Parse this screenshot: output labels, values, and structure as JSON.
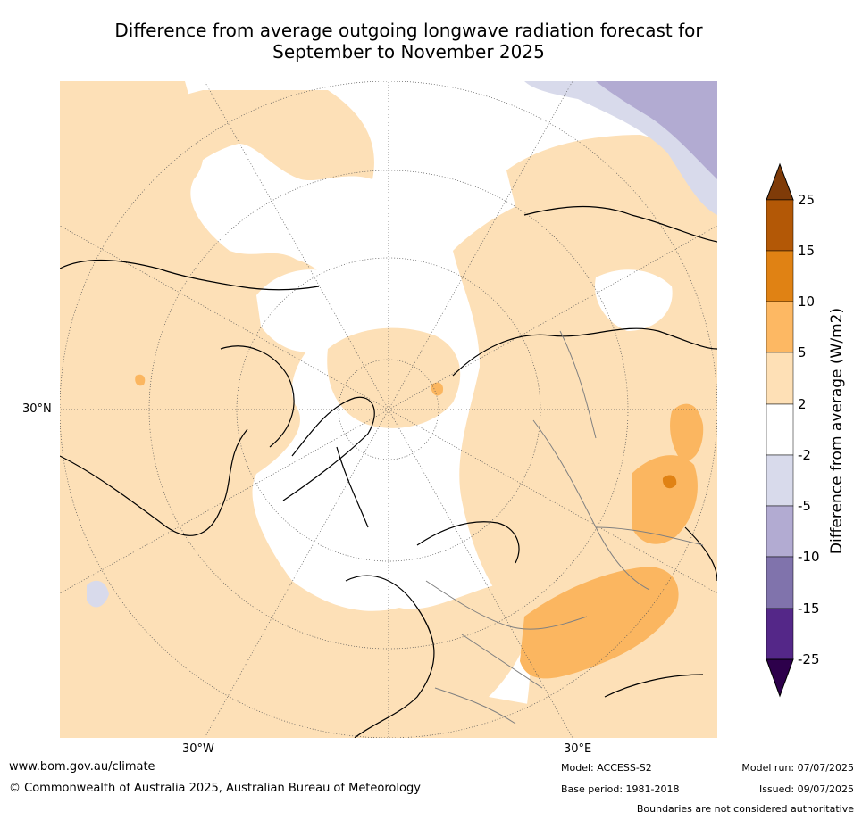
{
  "title": {
    "line1": "Difference from average outgoing longwave radiation forecast for",
    "line2": "September to November 2025"
  },
  "map": {
    "projection": "north-polar-stereographic",
    "lat_label": "30°N",
    "lon_labels": [
      "30°W",
      "30°E"
    ],
    "colors": {
      "ocean": "#ffffff",
      "p2_5": "#fde0b7",
      "p5_10": "#fbb660",
      "p10_15": "#e08214",
      "p15_25": "#b35806",
      "n2_5": "#d8daeb",
      "n5_10": "#b2abd2",
      "n10_15": "#8073ac",
      "n15_25": "#542788",
      "coast": "#000000",
      "borders": "#808080"
    }
  },
  "colorbar": {
    "label": "Difference from average (W/m2)",
    "ticks": [
      "25",
      "15",
      "10",
      "5",
      "2",
      "-2",
      "-5",
      "-10",
      "-15",
      "-25"
    ],
    "colors": [
      "#7f3b08",
      "#b35806",
      "#e08214",
      "#fdb863",
      "#fee0b6",
      "#ffffff",
      "#d8daeb",
      "#b2abd2",
      "#8073ac",
      "#542788",
      "#2d004b"
    ]
  },
  "footer": {
    "url": "www.bom.gov.au/climate",
    "copyright": "© Commonwealth of Australia 2025, Australian Bureau of Meteorology",
    "model": "Model: ACCESS-S2",
    "base_period": "Base period: 1981-2018",
    "model_run": "Model run: 07/07/2025",
    "issued": "Issued: 09/07/2025",
    "disclaimer": "Boundaries are not considered authoritative"
  }
}
